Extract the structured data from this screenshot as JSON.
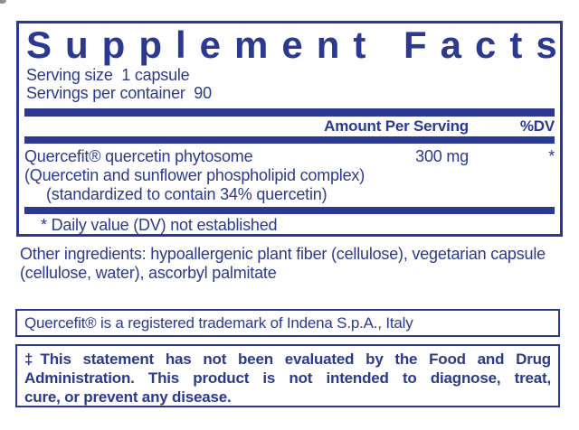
{
  "colors": {
    "navy": "#2B3990",
    "background": "#FFFFFF"
  },
  "panel": {
    "title": "Supplement Facts",
    "serving_size_line": "Serving size  1 capsule",
    "servings_per_container_line": "Servings per container  90",
    "amount_header": "Amount Per Serving",
    "dv_header": "%DV",
    "ingredient": {
      "name": "Quercefit® quercetin phytosome",
      "amount": "300 mg",
      "dv": "*",
      "detail_line_1": "(Quercetin and sunflower phospholipid complex)",
      "detail_line_2": "(standardized to contain 34% quercetin)"
    },
    "footnote": "* Daily value (DV) not established"
  },
  "other_ingredients": {
    "line_1": "Other ingredients: hypoallergenic plant fiber (cellulose), vegetarian capsule",
    "line_2": "(cellulose, water), ascorbyl palmitate"
  },
  "trademark_notice": "Quercefit® is a registered trademark of Indena S.p.A., Italy",
  "fda_disclaimer": {
    "line_1": "‡This statement has not been evaluated by the Food and Drug",
    "line_2": "Administration. This product is not intended to diagnose, treat,",
    "line_3": "cure, or prevent any disease."
  }
}
